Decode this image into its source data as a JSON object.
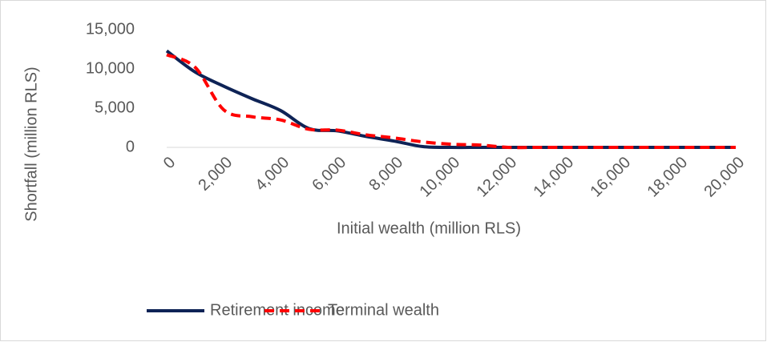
{
  "chart_data": {
    "type": "line",
    "x_label": "Initial wealth (million RLS)",
    "y_label": "Shortfall (million RLS)",
    "x": [
      0,
      1000,
      2000,
      3000,
      4000,
      5000,
      6000,
      7000,
      8000,
      9000,
      10000,
      11000,
      12000,
      13000,
      14000,
      15000,
      16000,
      17000,
      18000,
      19000,
      20000
    ],
    "series": [
      {
        "name": "Retirement income",
        "color": "#0e2356",
        "dash": false,
        "values": [
          12300,
          9600,
          7800,
          6200,
          4700,
          2400,
          2100,
          1400,
          800,
          100,
          0,
          0,
          0,
          0,
          0,
          0,
          0,
          0,
          0,
          0,
          0
        ]
      },
      {
        "name": "Terminal wealth",
        "color": "#ff0000",
        "dash": true,
        "values": [
          11800,
          10200,
          4800,
          3900,
          3500,
          2300,
          2200,
          1600,
          1200,
          700,
          400,
          300,
          0,
          0,
          0,
          0,
          0,
          0,
          0,
          0,
          0
        ]
      }
    ],
    "xlim": [
      0,
      20000
    ],
    "xticks": [
      0,
      {
        "value": 2000,
        "label": "2,000"
      },
      {
        "value": 4000,
        "label": "4,000"
      },
      {
        "value": 6000,
        "label": "6,000"
      },
      {
        "value": 8000,
        "label": "8,000"
      },
      {
        "value": 10000,
        "label": "10,000"
      },
      {
        "value": 12000,
        "label": "12,000"
      },
      {
        "value": 14000,
        "label": "14,000"
      },
      {
        "value": 16000,
        "label": "16,000"
      },
      {
        "value": 18000,
        "label": "18,000"
      },
      {
        "value": 20000,
        "label": "20,000"
      }
    ],
    "ylim": [
      0,
      15000
    ],
    "yticks": [
      0,
      {
        "value": 5000,
        "label": "5,000"
      },
      {
        "value": 10000,
        "label": "10,000"
      },
      {
        "value": 15000,
        "label": "15,000"
      }
    ],
    "grid": false,
    "legend": "bottom"
  }
}
